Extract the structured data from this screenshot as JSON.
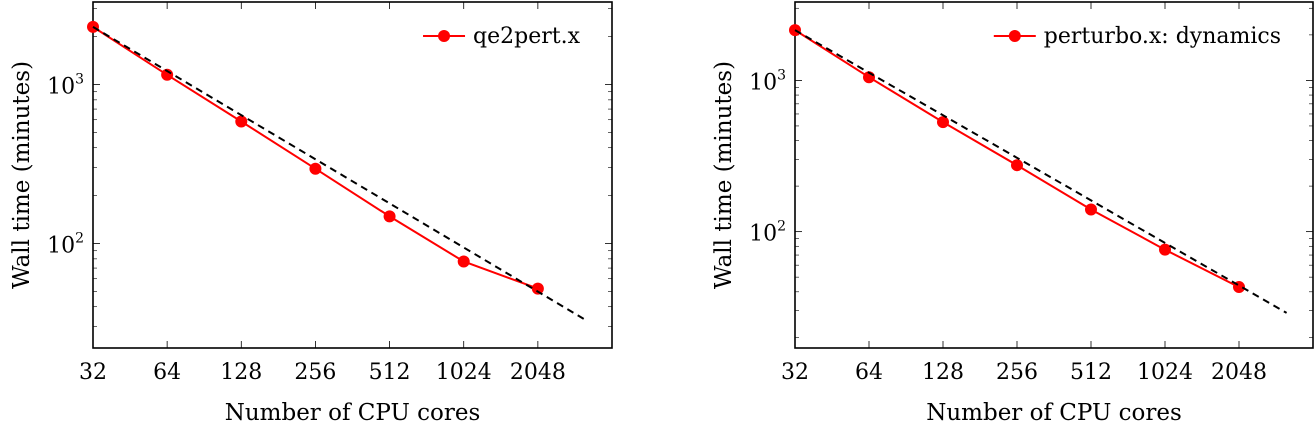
{
  "chart_data": [
    {
      "type": "line",
      "title": "",
      "xlabel": "Number of CPU cores",
      "ylabel": "Wall time (minutes)",
      "x_scale": "log2",
      "y_scale": "log10",
      "xlim": [
        32,
        4096
      ],
      "ylim": [
        22,
        3300
      ],
      "grid": false,
      "legend_position": "top-right",
      "x_ticks": [
        "32",
        "64",
        "128",
        "256",
        "512",
        "1024",
        "2048"
      ],
      "y_ticks": [
        {
          "base": "10",
          "exp": "3",
          "value": 1000
        },
        {
          "base": "10",
          "exp": "2",
          "value": 100
        }
      ],
      "series": [
        {
          "name": "qe2pert.x",
          "color": "#ff0000",
          "marker": "circle",
          "x": [
            32,
            64,
            128,
            256,
            512,
            1024,
            2048
          ],
          "y": [
            2300,
            1150,
            585,
            295,
            148,
            77,
            52
          ]
        },
        {
          "reference": "ideal scaling",
          "color": "#000000",
          "style": "dashed",
          "marker": "none",
          "x": [
            32,
            3200
          ],
          "y": [
            2300,
            33
          ]
        }
      ]
    },
    {
      "type": "line",
      "title": "",
      "xlabel": "Number of CPU cores",
      "ylabel": "Wall time (minutes)",
      "x_scale": "log2",
      "y_scale": "log10",
      "xlim": [
        32,
        4096
      ],
      "ylim": [
        17,
        3300
      ],
      "grid": false,
      "legend_position": "top-right",
      "x_ticks": [
        "32",
        "64",
        "128",
        "256",
        "512",
        "1024",
        "2048"
      ],
      "y_ticks": [
        {
          "base": "10",
          "exp": "3",
          "value": 1000
        },
        {
          "base": "10",
          "exp": "2",
          "value": 100
        }
      ],
      "series": [
        {
          "name": "perturbo.x: dynamics",
          "color": "#ff0000",
          "marker": "circle",
          "x": [
            32,
            64,
            128,
            256,
            512,
            1024,
            2048
          ],
          "y": [
            2150,
            1050,
            530,
            275,
            140,
            76,
            43
          ]
        },
        {
          "reference": "ideal scaling",
          "color": "#000000",
          "style": "dashed",
          "marker": "none",
          "x": [
            32,
            3200
          ],
          "y": [
            2150,
            29
          ]
        }
      ]
    }
  ]
}
